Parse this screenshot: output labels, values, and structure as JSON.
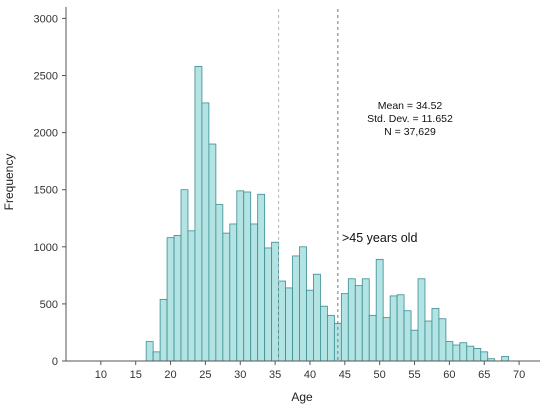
{
  "chart_data": {
    "type": "bar",
    "title": "",
    "xlabel": "Age",
    "ylabel": "Frequency",
    "xlim": [
      5,
      73
    ],
    "ylim": [
      0,
      3100
    ],
    "x_ticks": [
      10,
      15,
      20,
      25,
      30,
      35,
      40,
      45,
      50,
      55,
      60,
      65,
      70
    ],
    "y_ticks": [
      0,
      500,
      1000,
      1500,
      2000,
      2500,
      3000
    ],
    "bin_width": 1,
    "grid": false,
    "bar_color": "#b3e3e3",
    "bar_edge_color": "#3a8d91",
    "bins": [
      {
        "x": 17,
        "value": 170
      },
      {
        "x": 18,
        "value": 80
      },
      {
        "x": 19,
        "value": 540
      },
      {
        "x": 20,
        "value": 1080
      },
      {
        "x": 21,
        "value": 1100
      },
      {
        "x": 22,
        "value": 1500
      },
      {
        "x": 23,
        "value": 1140
      },
      {
        "x": 24,
        "value": 2580
      },
      {
        "x": 25,
        "value": 2260
      },
      {
        "x": 26,
        "value": 1900
      },
      {
        "x": 27,
        "value": 1370
      },
      {
        "x": 28,
        "value": 1120
      },
      {
        "x": 29,
        "value": 1200
      },
      {
        "x": 30,
        "value": 1490
      },
      {
        "x": 31,
        "value": 1480
      },
      {
        "x": 32,
        "value": 1200
      },
      {
        "x": 33,
        "value": 1460
      },
      {
        "x": 34,
        "value": 990
      },
      {
        "x": 35,
        "value": 1040
      },
      {
        "x": 36,
        "value": 700
      },
      {
        "x": 37,
        "value": 640
      },
      {
        "x": 38,
        "value": 920
      },
      {
        "x": 39,
        "value": 1000
      },
      {
        "x": 40,
        "value": 620
      },
      {
        "x": 41,
        "value": 760
      },
      {
        "x": 42,
        "value": 480
      },
      {
        "x": 43,
        "value": 400
      },
      {
        "x": 44,
        "value": 330
      },
      {
        "x": 45,
        "value": 590
      },
      {
        "x": 46,
        "value": 720
      },
      {
        "x": 47,
        "value": 660
      },
      {
        "x": 48,
        "value": 720
      },
      {
        "x": 49,
        "value": 400
      },
      {
        "x": 50,
        "value": 890
      },
      {
        "x": 51,
        "value": 380
      },
      {
        "x": 52,
        "value": 570
      },
      {
        "x": 53,
        "value": 580
      },
      {
        "x": 54,
        "value": 440
      },
      {
        "x": 55,
        "value": 270
      },
      {
        "x": 56,
        "value": 720
      },
      {
        "x": 57,
        "value": 350
      },
      {
        "x": 58,
        "value": 460
      },
      {
        "x": 59,
        "value": 370
      },
      {
        "x": 60,
        "value": 170
      },
      {
        "x": 61,
        "value": 140
      },
      {
        "x": 62,
        "value": 160
      },
      {
        "x": 63,
        "value": 130
      },
      {
        "x": 64,
        "value": 110
      },
      {
        "x": 65,
        "value": 80
      },
      {
        "x": 66,
        "value": 20
      },
      {
        "x": 67,
        "value": 0
      },
      {
        "x": 68,
        "value": 40
      }
    ],
    "reference_lines": [
      {
        "x": 35.5,
        "color": "#b5b5b5"
      },
      {
        "x": 44,
        "color": "#777777"
      }
    ],
    "annotations": {
      "stats": [
        "Mean = 34.52",
        "Std. Dev. = 11.652",
        "N = 37,629"
      ],
      "label": ">45 years old"
    }
  }
}
